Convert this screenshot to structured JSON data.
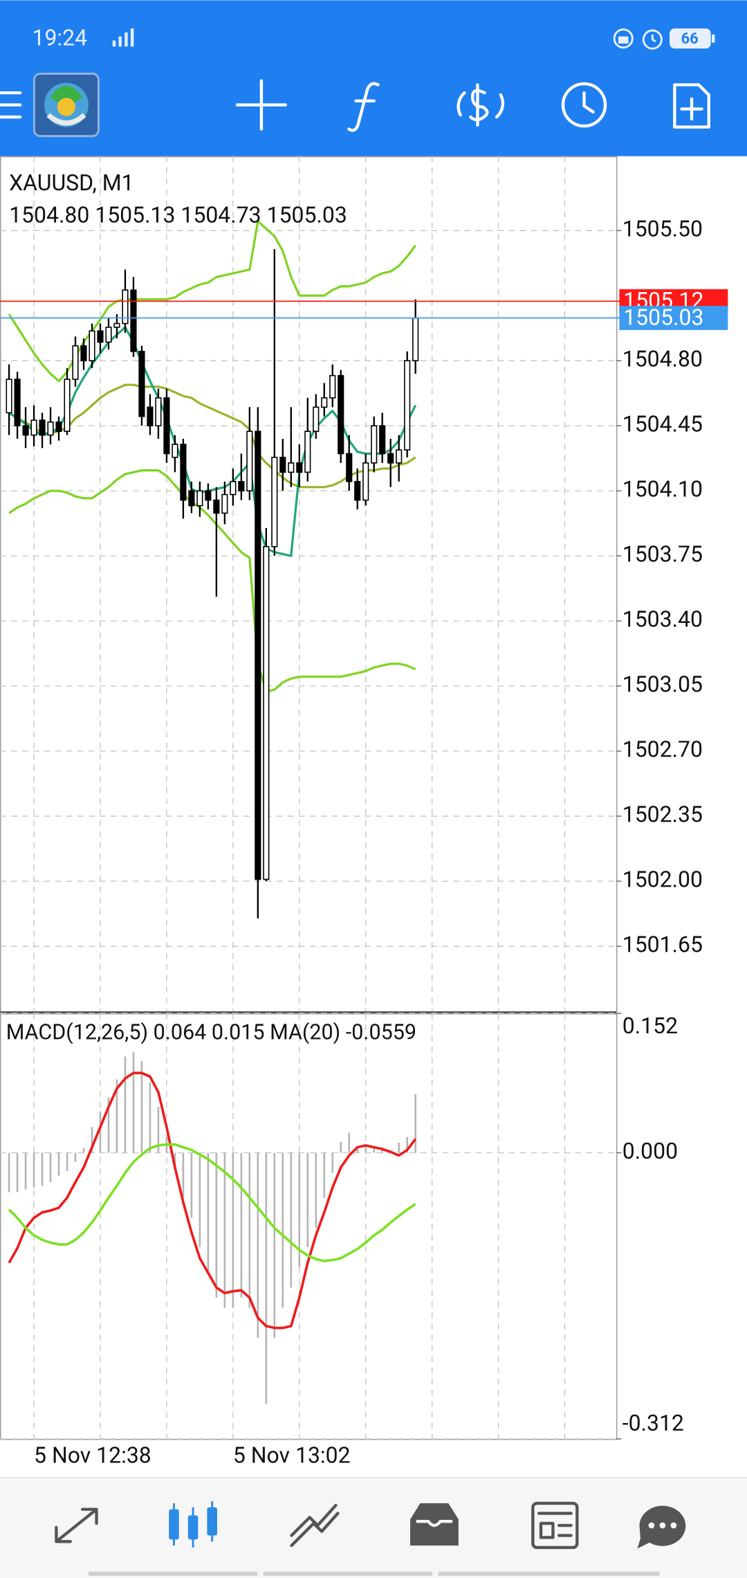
{
  "status_bar": {
    "time": "19:24",
    "battery": "66"
  },
  "chart_data": [
    {
      "type": "candlestick",
      "title": "XAUUSD, M1",
      "subtitle": "1504.80 1505.13 1504.73 1505.03",
      "categories": [
        null,
        null,
        null,
        "5 Nov 12:38",
        null,
        null,
        null,
        null,
        null,
        null,
        null,
        null,
        null,
        null,
        null,
        null,
        null,
        null,
        null,
        null,
        null,
        null,
        null,
        null,
        null,
        null,
        null,
        "5 Nov 13:02",
        null,
        null,
        null,
        null,
        null,
        null,
        null,
        null,
        null,
        null,
        null,
        null,
        null,
        null,
        null,
        null,
        null,
        null,
        null,
        null,
        null,
        null
      ],
      "open": [
        1504.52,
        1504.7,
        1504.45,
        1504.4,
        1504.48,
        1504.4,
        1504.47,
        1504.42,
        1504.7,
        1504.88,
        1504.8,
        1504.96,
        1504.9,
        1504.98,
        1505.0,
        1505.18,
        1504.85,
        1504.55,
        1504.45,
        1504.6,
        1504.28,
        1504.35,
        1504.1,
        1504.02,
        1504.1,
        1504.05,
        1503.98,
        1504.08,
        1504.15,
        1504.1,
        1504.42,
        1502.01,
        1503.8,
        1504.28,
        1504.2,
        1504.25,
        1504.2,
        1504.42,
        1504.55,
        1504.6,
        1504.72,
        1504.3,
        1504.15,
        1504.05,
        1504.25,
        1504.45,
        1504.3,
        1504.25,
        1504.32,
        1504.8
      ],
      "high": [
        1504.78,
        1504.74,
        1504.55,
        1504.56,
        1504.52,
        1504.55,
        1504.5,
        1504.76,
        1504.93,
        1504.92,
        1505.0,
        1505.0,
        1505.03,
        1505.05,
        1505.29,
        1505.25,
        1504.88,
        1504.62,
        1504.65,
        1504.65,
        1504.4,
        1504.38,
        1504.15,
        1504.15,
        1504.14,
        1504.12,
        1504.15,
        1504.22,
        1504.3,
        1504.55,
        1504.55,
        1503.9,
        1505.4,
        1504.38,
        1504.55,
        1504.35,
        1504.6,
        1504.62,
        1504.68,
        1504.78,
        1504.75,
        1504.4,
        1504.22,
        1504.3,
        1504.5,
        1504.52,
        1504.38,
        1504.4,
        1504.85,
        1505.13
      ],
      "low": [
        1504.4,
        1504.38,
        1504.33,
        1504.34,
        1504.33,
        1504.35,
        1504.37,
        1504.4,
        1504.66,
        1504.75,
        1504.76,
        1504.84,
        1504.86,
        1504.92,
        1504.95,
        1504.82,
        1504.45,
        1504.4,
        1504.38,
        1504.25,
        1504.2,
        1503.95,
        1503.98,
        1503.96,
        1504.0,
        1503.53,
        1503.92,
        1504.02,
        1504.05,
        1504.05,
        1501.8,
        1502.0,
        1503.75,
        1504.1,
        1504.12,
        1504.12,
        1504.15,
        1504.38,
        1504.5,
        1504.55,
        1504.25,
        1504.1,
        1504.0,
        1504.02,
        1504.2,
        1504.25,
        1504.12,
        1504.15,
        1504.28,
        1504.73
      ],
      "close": [
        1504.7,
        1504.45,
        1504.4,
        1504.48,
        1504.4,
        1504.47,
        1504.42,
        1504.7,
        1504.88,
        1504.8,
        1504.96,
        1504.9,
        1504.98,
        1505.0,
        1505.18,
        1504.85,
        1504.5,
        1504.45,
        1504.6,
        1504.3,
        1504.35,
        1504.05,
        1504.02,
        1504.1,
        1504.05,
        1503.98,
        1504.08,
        1504.15,
        1504.1,
        1504.42,
        1502.01,
        1503.8,
        1504.28,
        1504.2,
        1504.25,
        1504.2,
        1504.42,
        1504.55,
        1504.6,
        1504.72,
        1504.3,
        1504.15,
        1504.05,
        1504.25,
        1504.45,
        1504.3,
        1504.25,
        1504.32,
        1504.8,
        1505.03
      ],
      "series": [
        {
          "color": "#7ed321",
          "values": [
            1505.05,
            1504.98,
            1504.91,
            1504.84,
            1504.78,
            1504.73,
            1504.69,
            1504.74,
            1504.82,
            1504.9,
            1504.96,
            1505.02,
            1505.09,
            1505.12,
            1505.13,
            1505.13,
            1505.13,
            1505.13,
            1505.13,
            1505.13,
            1505.14,
            1505.17,
            1505.19,
            1505.21,
            1505.22,
            1505.25,
            1505.26,
            1505.27,
            1505.28,
            1505.29,
            1505.55,
            1505.51,
            1505.47,
            1505.39,
            1505.25,
            1505.15,
            1505.15,
            1505.15,
            1505.15,
            1505.18,
            1505.2,
            1505.2,
            1505.21,
            1505.22,
            1505.25,
            1505.27,
            1505.28,
            1505.31,
            1505.36,
            1505.42
          ]
        },
        {
          "color": "#7ed321",
          "values": [
            1503.98,
            1504.01,
            1504.03,
            1504.06,
            1504.08,
            1504.1,
            1504.1,
            1504.09,
            1504.07,
            1504.06,
            1504.06,
            1504.09,
            1504.12,
            1504.16,
            1504.19,
            1504.2,
            1504.21,
            1504.21,
            1504.21,
            1504.18,
            1504.13,
            1504.08,
            1504.04,
            1504.01,
            1503.97,
            1503.92,
            1503.87,
            1503.82,
            1503.77,
            1503.74,
            1503.17,
            1503.02,
            1503.03,
            1503.07,
            1503.09,
            1503.1,
            1503.1,
            1503.1,
            1503.1,
            1503.1,
            1503.1,
            1503.11,
            1503.12,
            1503.13,
            1503.15,
            1503.16,
            1503.17,
            1503.17,
            1503.16,
            1503.14
          ]
        },
        {
          "color": "#9ab32a",
          "values": [
            1504.52,
            1504.49,
            1504.47,
            1504.44,
            1504.41,
            1504.41,
            1504.42,
            1504.44,
            1504.49,
            1504.52,
            1504.56,
            1504.6,
            1504.63,
            1504.65,
            1504.67,
            1504.67,
            1504.66,
            1504.66,
            1504.66,
            1504.65,
            1504.63,
            1504.61,
            1504.6,
            1504.57,
            1504.55,
            1504.53,
            1504.51,
            1504.49,
            1504.47,
            1504.43,
            1504.3,
            1504.25,
            1504.21,
            1504.17,
            1504.14,
            1504.12,
            1504.12,
            1504.12,
            1504.12,
            1504.13,
            1504.15,
            1504.18,
            1504.2,
            1504.21,
            1504.21,
            1504.22,
            1504.22,
            1504.24,
            1504.25,
            1504.28
          ]
        },
        {
          "color": "#1fa57e",
          "values": [
            1504.52,
            1504.49,
            1504.46,
            1504.42,
            1504.4,
            1504.41,
            1504.44,
            1504.52,
            1504.63,
            1504.71,
            1504.78,
            1504.84,
            1504.9,
            1504.94,
            1504.98,
            1504.9,
            1504.79,
            1504.69,
            1504.6,
            1504.49,
            1504.36,
            1504.25,
            1504.11,
            1504.09,
            1504.1,
            1504.11,
            1504.12,
            1504.15,
            1504.2,
            1504.25,
            1503.92,
            1503.79,
            1503.77,
            1503.76,
            1503.75,
            1504.2,
            1504.36,
            1504.44,
            1504.49,
            1504.53,
            1504.47,
            1504.37,
            1504.31,
            1504.3,
            1504.3,
            1504.3,
            1504.32,
            1504.37,
            1504.47,
            1504.56
          ]
        }
      ],
      "price_lines": [
        {
          "value": 1505.12,
          "color": "#ff1a1a"
        },
        {
          "value": 1505.03,
          "color": "#3d9bf0"
        }
      ],
      "ylim": [
        1501.3,
        1505.9
      ],
      "yticks": [
        {
          "value": 1505.5,
          "label": "1505.50"
        },
        {
          "value": 1504.8,
          "label": "1504.80"
        },
        {
          "value": 1504.45,
          "label": "1504.45"
        },
        {
          "value": 1504.1,
          "label": "1504.10"
        },
        {
          "value": 1503.75,
          "label": "1503.75"
        },
        {
          "value": 1503.4,
          "label": "1503.40"
        },
        {
          "value": 1503.05,
          "label": "1503.05"
        },
        {
          "value": 1502.7,
          "label": "1502.70"
        },
        {
          "value": 1502.35,
          "label": "1502.35"
        },
        {
          "value": 1502.0,
          "label": "1502.00"
        },
        {
          "value": 1501.65,
          "label": "1501.65"
        }
      ],
      "grid": true
    },
    {
      "type": "macd",
      "title": "MACD(12,26,5) 0.064 0.015 MA(20) -0.0559",
      "values": [
        -0.043,
        -0.043,
        -0.04,
        -0.038,
        -0.036,
        -0.032,
        -0.025,
        -0.02,
        -0.01,
        0.005,
        0.028,
        0.045,
        0.06,
        0.08,
        0.105,
        0.11,
        0.1,
        0.077,
        0.05,
        0.017,
        -0.016,
        -0.049,
        -0.071,
        -0.103,
        -0.131,
        -0.158,
        -0.169,
        -0.169,
        -0.158,
        -0.169,
        -0.202,
        -0.274,
        -0.202,
        -0.169,
        -0.147,
        -0.125,
        -0.103,
        -0.082,
        -0.049,
        -0.022,
        0.012,
        0.022,
        0.006,
        0.008,
        0.006,
        0.006,
        0.002,
        0.011,
        0.017,
        0.064
      ],
      "color": "#b4b4b4",
      "series": [
        {
          "color": "#ee1c1c",
          "values": [
            -0.12,
            -0.104,
            -0.082,
            -0.071,
            -0.065,
            -0.063,
            -0.06,
            -0.049,
            -0.032,
            -0.016,
            0.006,
            0.028,
            0.05,
            0.07,
            0.081,
            0.087,
            0.087,
            0.083,
            0.066,
            0.028,
            -0.016,
            -0.054,
            -0.087,
            -0.115,
            -0.131,
            -0.147,
            -0.153,
            -0.151,
            -0.15,
            -0.158,
            -0.18,
            -0.189,
            -0.191,
            -0.191,
            -0.189,
            -0.158,
            -0.12,
            -0.09,
            -0.065,
            -0.038,
            -0.016,
            -0.003,
            0.006,
            0.008,
            0.006,
            0.004,
            0.001,
            -0.003,
            0.003,
            0.015
          ]
        },
        {
          "color": "#7ee025",
          "values": [
            -0.062,
            -0.071,
            -0.082,
            -0.09,
            -0.095,
            -0.098,
            -0.1,
            -0.1,
            -0.095,
            -0.087,
            -0.076,
            -0.063,
            -0.049,
            -0.036,
            -0.022,
            -0.01,
            -0.002,
            0.005,
            0.008,
            0.009,
            0.009,
            0.006,
            0.003,
            -0.002,
            -0.007,
            -0.014,
            -0.021,
            -0.029,
            -0.038,
            -0.049,
            -0.06,
            -0.071,
            -0.082,
            -0.09,
            -0.098,
            -0.106,
            -0.112,
            -0.116,
            -0.118,
            -0.117,
            -0.115,
            -0.11,
            -0.105,
            -0.098,
            -0.09,
            -0.084,
            -0.076,
            -0.069,
            -0.062,
            -0.0559
          ]
        }
      ],
      "ylim": [
        -0.312,
        0.152
      ],
      "yticks": [
        0.152,
        {
          "value": 0,
          "label": "0.000"
        },
        -0.312
      ],
      "grid": true
    }
  ]
}
